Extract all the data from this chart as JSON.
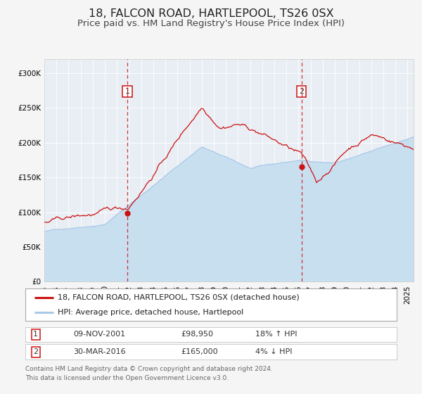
{
  "title": "18, FALCON ROAD, HARTLEPOOL, TS26 0SX",
  "subtitle": "Price paid vs. HM Land Registry's House Price Index (HPI)",
  "ylim": [
    0,
    320000
  ],
  "yticks": [
    0,
    50000,
    100000,
    150000,
    200000,
    250000,
    300000
  ],
  "ytick_labels": [
    "£0",
    "£50K",
    "£100K",
    "£150K",
    "£200K",
    "£250K",
    "£300K"
  ],
  "xlim_start": 1995.0,
  "xlim_end": 2025.5,
  "hpi_color": "#aac8e8",
  "hpi_fill_color": "#c8dff0",
  "price_color": "#cc1111",
  "fig_bg": "#f5f5f5",
  "plot_bg": "#e8eef4",
  "sale1_date": 2001.86,
  "sale1_price": 98950,
  "sale1_label": "1",
  "sale2_date": 2016.24,
  "sale2_price": 165000,
  "sale2_label": "2",
  "legend_line1": "18, FALCON ROAD, HARTLEPOOL, TS26 0SX (detached house)",
  "legend_line2": "HPI: Average price, detached house, Hartlepool",
  "table_row1": [
    "1",
    "09-NOV-2001",
    "£98,950",
    "18% ↑ HPI"
  ],
  "table_row2": [
    "2",
    "30-MAR-2016",
    "£165,000",
    "4% ↓ HPI"
  ],
  "footer1": "Contains HM Land Registry data © Crown copyright and database right 2024.",
  "footer2": "This data is licensed under the Open Government Licence v3.0.",
  "title_fontsize": 11.5,
  "subtitle_fontsize": 9.5,
  "tick_fontsize": 7.5,
  "legend_fontsize": 8,
  "table_fontsize": 8,
  "footer_fontsize": 6.5
}
